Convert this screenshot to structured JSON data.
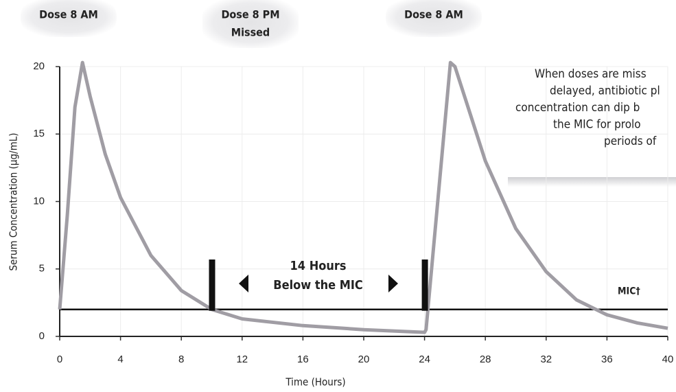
{
  "chart_data": {
    "type": "line",
    "x": [
      0,
      0.5,
      1,
      1.5,
      2,
      3,
      4,
      6,
      8,
      10,
      12,
      16,
      20,
      24,
      24.1,
      25.7,
      26,
      27,
      28,
      30,
      32,
      34,
      36,
      38,
      40
    ],
    "values": [
      2,
      9,
      17,
      20.3,
      17.8,
      13.5,
      10.3,
      6.0,
      3.4,
      2.0,
      1.3,
      0.8,
      0.5,
      0.3,
      0.5,
      20.3,
      20,
      16.5,
      13,
      8,
      4.8,
      2.7,
      1.6,
      1.0,
      0.6
    ],
    "color": "#a09da4",
    "xlim": [
      0,
      40
    ],
    "xticks": [
      0,
      4,
      8,
      12,
      16,
      20,
      24,
      28,
      32,
      36,
      40
    ],
    "ylim": [
      0,
      20
    ],
    "yticks": [
      0,
      5,
      10,
      15,
      20
    ],
    "grid": true,
    "xlabel": "Time (Hours)",
    "ylabel": "Serum Concentration (µg/mL)",
    "mic": {
      "value": 2,
      "label": "MIC†"
    },
    "markers": {
      "x": [
        10,
        24
      ],
      "top": 5.7
    },
    "gap_label": [
      "14 Hours",
      "Below the MIC"
    ],
    "doses": [
      [
        "Dose 8 AM"
      ],
      [
        "Dose 8 PM",
        "Missed"
      ],
      [
        "Dose 8 AM"
      ]
    ],
    "note": [
      "When doses are miss",
      "delayed, antibiotic pl",
      "concentration can dip b",
      "the MIC for prolo",
      "periods of"
    ]
  }
}
